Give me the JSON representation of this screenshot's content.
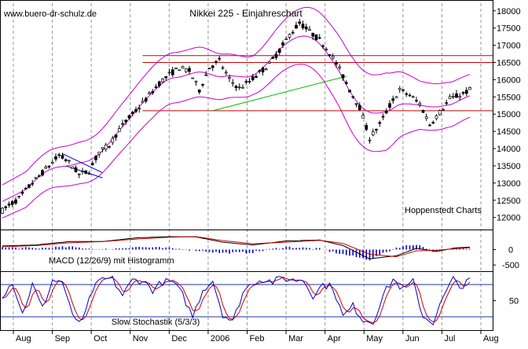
{
  "header": {
    "source": "www.buero-dr-schulz.de"
  },
  "chart_data": [
    {
      "type": "candlestick",
      "title": "Nikkei 225 - Einjahreschart",
      "annotation": "Hoppenstedt Charts",
      "y_ticks": [
        12000,
        12500,
        13000,
        13500,
        14000,
        14500,
        15000,
        15500,
        16000,
        16500,
        17000,
        17500,
        18000
      ],
      "ylim": [
        11650,
        18200
      ],
      "x_labels": [
        "Aug",
        "Sep",
        "Oct",
        "Nov",
        "Dec",
        "2006",
        "Feb",
        "Mar",
        "Apr",
        "May",
        "Jun",
        "Jul",
        "Aug"
      ],
      "price_anchors": [
        [
          0,
          12200
        ],
        [
          2,
          12350
        ],
        [
          5,
          12550
        ],
        [
          8,
          12900
        ],
        [
          11,
          13200
        ],
        [
          14,
          13500
        ],
        [
          17,
          13800
        ],
        [
          20,
          13600
        ],
        [
          23,
          13250
        ],
        [
          26,
          13350
        ],
        [
          29,
          13900
        ],
        [
          32,
          14100
        ],
        [
          35,
          14550
        ],
        [
          38,
          14900
        ],
        [
          41,
          15200
        ],
        [
          44,
          15550
        ],
        [
          47,
          15900
        ],
        [
          50,
          16150
        ],
        [
          53,
          16350
        ],
        [
          56,
          16250
        ],
        [
          59,
          15700
        ],
        [
          62,
          16350
        ],
        [
          65,
          16550
        ],
        [
          68,
          16000
        ],
        [
          71,
          15750
        ],
        [
          74,
          15950
        ],
        [
          77,
          16200
        ],
        [
          80,
          16450
        ],
        [
          83,
          16850
        ],
        [
          86,
          17300
        ],
        [
          89,
          17650
        ],
        [
          92,
          17400
        ],
        [
          95,
          17150
        ],
        [
          98,
          16800
        ],
        [
          101,
          16300
        ],
        [
          104,
          15700
        ],
        [
          107,
          15200
        ],
        [
          110,
          14300
        ],
        [
          113,
          14700
        ],
        [
          116,
          15250
        ],
        [
          119,
          15700
        ],
        [
          122,
          15550
        ],
        [
          125,
          15300
        ],
        [
          128,
          14700
        ],
        [
          131,
          15050
        ],
        [
          134,
          15450
        ],
        [
          137,
          15550
        ],
        [
          140,
          15700
        ]
      ],
      "bollinger_width": [
        [
          0,
          480
        ],
        [
          15,
          560
        ],
        [
          30,
          640
        ],
        [
          45,
          740
        ],
        [
          60,
          720
        ],
        [
          75,
          560
        ],
        [
          90,
          820
        ],
        [
          105,
          1100
        ],
        [
          115,
          1120
        ],
        [
          125,
          700
        ],
        [
          140,
          620
        ]
      ],
      "horizontal_lines": [
        16700,
        16500,
        15100
      ],
      "trendlines": [
        {
          "color": "#00bb00",
          "points": [
            [
              63,
              15100
            ],
            [
              103,
              16100
            ]
          ]
        },
        {
          "color": "#0000cc",
          "points": [
            [
              18,
              13850
            ],
            [
              30,
              13300
            ]
          ]
        },
        {
          "color": "#0000cc",
          "points": [
            [
              19,
              13500
            ],
            [
              30,
              13150
            ]
          ]
        }
      ],
      "colors": {
        "candle": "#000000",
        "bollinger": "#cc00cc",
        "resistance": "#cc0000",
        "trend_up": "#00bb00",
        "trend_channel": "#0000cc"
      }
    },
    {
      "type": "line+histogram",
      "title": "MACD (12/26/9) mit Histogramm",
      "y_ticks": [
        {
          "value": 0,
          "label": "0"
        },
        {
          "value": -500,
          "label": "-500"
        }
      ],
      "ylim": [
        -700,
        650
      ],
      "macd_anchors": [
        [
          0,
          120
        ],
        [
          10,
          150
        ],
        [
          20,
          260
        ],
        [
          30,
          260
        ],
        [
          40,
          380
        ],
        [
          50,
          420
        ],
        [
          58,
          410
        ],
        [
          66,
          240
        ],
        [
          75,
          150
        ],
        [
          85,
          280
        ],
        [
          95,
          310
        ],
        [
          102,
          130
        ],
        [
          110,
          -300
        ],
        [
          118,
          -200
        ],
        [
          124,
          40
        ],
        [
          130,
          -60
        ],
        [
          136,
          60
        ],
        [
          140,
          80
        ]
      ],
      "signal_anchors": [
        [
          0,
          90
        ],
        [
          10,
          130
        ],
        [
          20,
          220
        ],
        [
          30,
          260
        ],
        [
          40,
          340
        ],
        [
          50,
          400
        ],
        [
          58,
          420
        ],
        [
          66,
          290
        ],
        [
          75,
          190
        ],
        [
          85,
          240
        ],
        [
          95,
          300
        ],
        [
          102,
          200
        ],
        [
          110,
          -150
        ],
        [
          118,
          -230
        ],
        [
          124,
          -40
        ],
        [
          130,
          -20
        ],
        [
          136,
          30
        ],
        [
          140,
          60
        ]
      ],
      "colors": {
        "macd": "#000000",
        "signal": "#cc0000",
        "histogram": "#0000cc"
      }
    },
    {
      "type": "line",
      "title": "Slow Stochastik (5/3/3)",
      "y_ticks": [
        {
          "value": 50,
          "label": "50"
        }
      ],
      "ylim": [
        -5,
        105
      ],
      "levels": [
        80,
        20
      ],
      "stoch_anchors": [
        [
          0,
          60
        ],
        [
          3,
          85
        ],
        [
          6,
          25
        ],
        [
          9,
          80
        ],
        [
          12,
          35
        ],
        [
          15,
          88
        ],
        [
          18,
          85
        ],
        [
          21,
          20
        ],
        [
          24,
          10
        ],
        [
          27,
          70
        ],
        [
          30,
          90
        ],
        [
          33,
          90
        ],
        [
          36,
          60
        ],
        [
          39,
          88
        ],
        [
          42,
          88
        ],
        [
          45,
          70
        ],
        [
          48,
          85
        ],
        [
          51,
          85
        ],
        [
          54,
          60
        ],
        [
          57,
          20
        ],
        [
          60,
          70
        ],
        [
          63,
          88
        ],
        [
          66,
          25
        ],
        [
          69,
          10
        ],
        [
          72,
          65
        ],
        [
          75,
          85
        ],
        [
          78,
          90
        ],
        [
          81,
          85
        ],
        [
          84,
          92
        ],
        [
          87,
          88
        ],
        [
          90,
          90
        ],
        [
          93,
          60
        ],
        [
          96,
          80
        ],
        [
          99,
          75
        ],
        [
          102,
          20
        ],
        [
          105,
          40
        ],
        [
          108,
          15
        ],
        [
          111,
          10
        ],
        [
          114,
          60
        ],
        [
          117,
          90
        ],
        [
          120,
          70
        ],
        [
          123,
          85
        ],
        [
          126,
          20
        ],
        [
          129,
          10
        ],
        [
          132,
          55
        ],
        [
          135,
          90
        ],
        [
          138,
          75
        ],
        [
          140,
          90
        ]
      ],
      "colors": {
        "k": "#0000cc",
        "d": "#cc0000",
        "levels": "#2233aa"
      }
    }
  ],
  "colors": {
    "grid": "#999999",
    "axis": "#000000",
    "background": "#ffffff"
  }
}
